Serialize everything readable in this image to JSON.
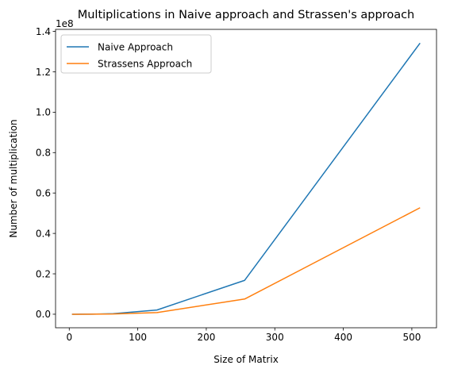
{
  "chart_data": {
    "type": "line",
    "title": "Multiplications in Naive approach and Strassen's approach",
    "xlabel": "Size of Matrix",
    "ylabel": "Number of multiplication",
    "offset_text": "1e8",
    "xlim": [
      -20,
      536
    ],
    "ylim": [
      -6700000,
      141000000
    ],
    "x_ticks": [
      0,
      100,
      200,
      300,
      400,
      500
    ],
    "x_tick_labels": [
      "0",
      "100",
      "200",
      "300",
      "400",
      "500"
    ],
    "y_ticks": [
      0,
      20000000,
      40000000,
      60000000,
      80000000,
      100000000,
      120000000,
      140000000
    ],
    "y_tick_labels": [
      "0.0",
      "0.2",
      "0.4",
      "0.6",
      "0.8",
      "1.0",
      "1.2",
      "1.4"
    ],
    "grid": false,
    "legend_position": "upper-left",
    "x": [
      4,
      8,
      16,
      32,
      64,
      128,
      256,
      512
    ],
    "series": [
      {
        "name": "Naive Approach",
        "color": "#1f77b4",
        "values": [
          64,
          512,
          4096,
          32768,
          262144,
          2097152,
          16777216,
          134217728
        ]
      },
      {
        "name": "Strassens Approach",
        "color": "#ff7f0e",
        "values": [
          49,
          343,
          2401,
          16807,
          117649,
          823543,
          7529536,
          52706752
        ]
      }
    ]
  }
}
